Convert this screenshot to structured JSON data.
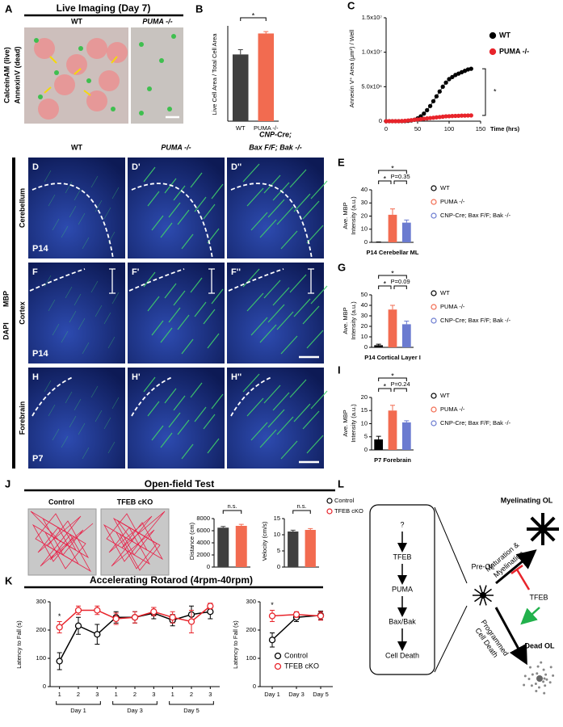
{
  "A": {
    "letter": "A",
    "title": "Live Imaging (Day 7)",
    "columns": [
      "WT",
      "PUMA -/-"
    ],
    "stain_live": "CalceinAM (live)",
    "stain_dead": "AnnexinV (dead)"
  },
  "B": {
    "letter": "B",
    "chart_data": {
      "type": "bar",
      "ylabel": "Live Cell Area / Total Cell Area",
      "categories": [
        "WT",
        "PUMA -/-"
      ],
      "values": [
        0.7,
        0.92
      ],
      "errors": [
        0.05,
        0.02
      ],
      "colors": [
        "#3f3f3f",
        "#f26b50"
      ],
      "ylim": [
        0,
        1
      ],
      "annotations": [
        "*"
      ]
    }
  },
  "C": {
    "letter": "C",
    "chart_data": {
      "type": "line",
      "ylabel": "Annexin V⁺ Area (µm²) / Well",
      "xlabel": "Time (hrs)",
      "x": [
        0,
        5,
        10,
        15,
        20,
        25,
        30,
        35,
        40,
        45,
        50,
        55,
        60,
        65,
        70,
        75,
        80,
        85,
        90,
        95,
        100,
        105,
        110,
        115,
        120,
        125,
        130,
        135
      ],
      "series": [
        {
          "name": "WT",
          "color": "#000000",
          "values": [
            0,
            0,
            0,
            0,
            0,
            0,
            20000,
            50000,
            100000,
            200000,
            400000,
            700000,
            1100000,
            1600000,
            2200000,
            2900000,
            3600000,
            4300000,
            5000000,
            5600000,
            6100000,
            6400000,
            6700000,
            6900000,
            7100000,
            7300000,
            7500000,
            7600000
          ]
        },
        {
          "name": "PUMA -/-",
          "color": "#e8242b",
          "values": [
            0,
            0,
            0,
            0,
            0,
            20000,
            50000,
            100000,
            150000,
            200000,
            250000,
            300000,
            350000,
            400000,
            450000,
            500000,
            550000,
            600000,
            650000,
            700000,
            720000,
            740000,
            760000,
            780000,
            800000,
            810000,
            820000,
            830000
          ]
        }
      ],
      "xlim": [
        0,
        150
      ],
      "xticks": [
        0,
        50,
        100,
        150
      ],
      "ylim": [
        0,
        15000000
      ],
      "yticks": [
        0,
        {
          "value": 5000000,
          "label": "5.0x10⁶"
        },
        {
          "value": 10000000,
          "label": "1.0x10⁷"
        },
        {
          "value": 15000000,
          "label": "1.5x10⁷"
        }
      ],
      "legend": "right",
      "annotations": [
        "*"
      ]
    }
  },
  "columns": [
    "WT",
    "PUMA -/-",
    [
      "CNP-Cre;",
      "Bax F/F; Bak -/-"
    ]
  ],
  "stain": {
    "green": "MBP",
    "blue": "DAPI"
  },
  "rows": [
    {
      "region": "Cerebellum",
      "age": "P14",
      "letters": [
        "D",
        "D'",
        "D''"
      ]
    },
    {
      "region": "Cortex",
      "age": "P14",
      "letters": [
        "F",
        "F'",
        "F''"
      ]
    },
    {
      "region": "Forebrain",
      "age": "P7",
      "letters": [
        "H",
        "H'",
        "H''"
      ]
    }
  ],
  "E": {
    "letter": "E",
    "chart_data": {
      "type": "bar",
      "ylabel": [
        "Ave. MBP",
        "Intensity (a.u.)"
      ],
      "xlabel": "P14 Cerebellar ML",
      "categories": [
        "WT",
        "PUMA -/-",
        "CNP-Cre; Bax F/F; Bak -/-"
      ],
      "values": [
        0,
        21,
        15
      ],
      "errors": [
        0.3,
        4.5,
        2
      ],
      "colors": [
        "#000000",
        "#f26b50",
        "#6b7bd0"
      ],
      "ylim": [
        0,
        40
      ],
      "yticks": [
        0,
        10,
        20,
        30,
        40
      ],
      "legend": "right",
      "annotations": [
        "*",
        "*",
        "P=0.35"
      ]
    }
  },
  "G": {
    "letter": "G",
    "chart_data": {
      "type": "bar",
      "ylabel": [
        "Ave. MBP",
        "Intensity (a.u.)"
      ],
      "xlabel": "P14 Cortical Layer I",
      "categories": [
        "WT",
        "PUMA -/-",
        "CNP-Cre; Bax F/F; Bak -/-"
      ],
      "values": [
        2,
        36,
        22
      ],
      "errors": [
        1,
        4,
        3
      ],
      "colors": [
        "#000000",
        "#f26b50",
        "#6b7bd0"
      ],
      "ylim": [
        0,
        50
      ],
      "yticks": [
        0,
        10,
        20,
        30,
        40,
        50
      ],
      "legend": "right",
      "annotations": [
        "*",
        "*",
        "P=0.09"
      ]
    }
  },
  "I": {
    "letter": "I",
    "chart_data": {
      "type": "bar",
      "ylabel": [
        "Ave. MBP",
        "Intensity (a.u.)"
      ],
      "xlabel": "P7 Forebrain",
      "categories": [
        "WT",
        "PUMA -/-",
        "CNP-Cre; Bax F/F; Bak -/-"
      ],
      "values": [
        4,
        15,
        10.5
      ],
      "errors": [
        1.2,
        2,
        0.6
      ],
      "colors": [
        "#000000",
        "#f26b50",
        "#6b7bd0"
      ],
      "ylim": [
        0,
        20
      ],
      "yticks": [
        0,
        5,
        10,
        15,
        20
      ],
      "legend": "right",
      "annotations": [
        "*",
        "*",
        "P=0.24"
      ]
    }
  },
  "J": {
    "letter": "J",
    "title": "Open-field Test",
    "columns": [
      "Control",
      "TFEB cKO"
    ],
    "legend": [
      {
        "name": "Control",
        "color": "#000000"
      },
      {
        "name": "TFEB cKO",
        "color": "#e8242b"
      }
    ],
    "distance": {
      "type": "bar",
      "ylabel": "Distance (cm)",
      "values": [
        6500,
        6800
      ],
      "errors": [
        200,
        250
      ],
      "colors": [
        "#3f3f3f",
        "#f26b50"
      ],
      "ylim": [
        0,
        8000
      ],
      "yticks": [
        0,
        2000,
        4000,
        6000,
        8000
      ],
      "annotations": [
        "n.s."
      ]
    },
    "velocity": {
      "type": "bar",
      "ylabel": "Velocity (cm/s)",
      "values": [
        11,
        11.5
      ],
      "errors": [
        0.4,
        0.4
      ],
      "colors": [
        "#3f3f3f",
        "#f26b50"
      ],
      "ylim": [
        0,
        15
      ],
      "yticks": [
        0,
        5,
        10,
        15
      ],
      "annotations": [
        "n.s."
      ]
    }
  },
  "K": {
    "letter": "K",
    "title": "Accelerating Rotarod (4rpm-40rpm)",
    "trials": {
      "type": "line",
      "ylabel": "Latency to Fall (s)",
      "categories": [
        "1",
        "2",
        "3",
        "1",
        "2",
        "3",
        "1",
        "2",
        "3"
      ],
      "groups": [
        "Day 1",
        "Day 3",
        "Day 5"
      ],
      "series": [
        {
          "name": "Control",
          "color": "#000000",
          "values": [
            90,
            215,
            185,
            245,
            245,
            260,
            235,
            255,
            265
          ],
          "errors": [
            30,
            30,
            35,
            20,
            20,
            20,
            20,
            30,
            25
          ]
        },
        {
          "name": "TFEB cKO",
          "color": "#e8242b",
          "values": [
            210,
            270,
            270,
            240,
            245,
            265,
            245,
            230,
            285
          ],
          "errors": [
            20,
            15,
            15,
            20,
            20,
            15,
            20,
            40,
            10
          ]
        }
      ],
      "ylim": [
        0,
        300
      ],
      "yticks": [
        0,
        100,
        200,
        300
      ],
      "annotations": [
        "*"
      ]
    },
    "days": {
      "type": "line",
      "ylabel": "Latency to Fall (s)",
      "categories": [
        "Day 1",
        "Day 3",
        "Day 5"
      ],
      "series": [
        {
          "name": "Control",
          "color": "#000000",
          "values": [
            165,
            245,
            252
          ],
          "errors": [
            25,
            15,
            15
          ]
        },
        {
          "name": "TFEB cKO",
          "color": "#e8242b",
          "values": [
            250,
            255,
            250
          ],
          "errors": [
            20,
            10,
            15
          ]
        }
      ],
      "ylim": [
        0,
        300
      ],
      "yticks": [
        0,
        100,
        200,
        300
      ],
      "legend": "inside",
      "annotations": [
        "*"
      ]
    }
  },
  "L": {
    "letter": "L",
    "pathway": [
      "?",
      "TFEB",
      "PUMA",
      "Bax/Bak",
      "Cell Death"
    ],
    "pre": "Pre-OL",
    "up": [
      "Maturation &",
      "Myelination"
    ],
    "myelinating": "Myelinating OL",
    "regulator": "TFEB",
    "down": [
      "Programmed",
      "Cell Death"
    ],
    "dead": "Dead OL"
  }
}
